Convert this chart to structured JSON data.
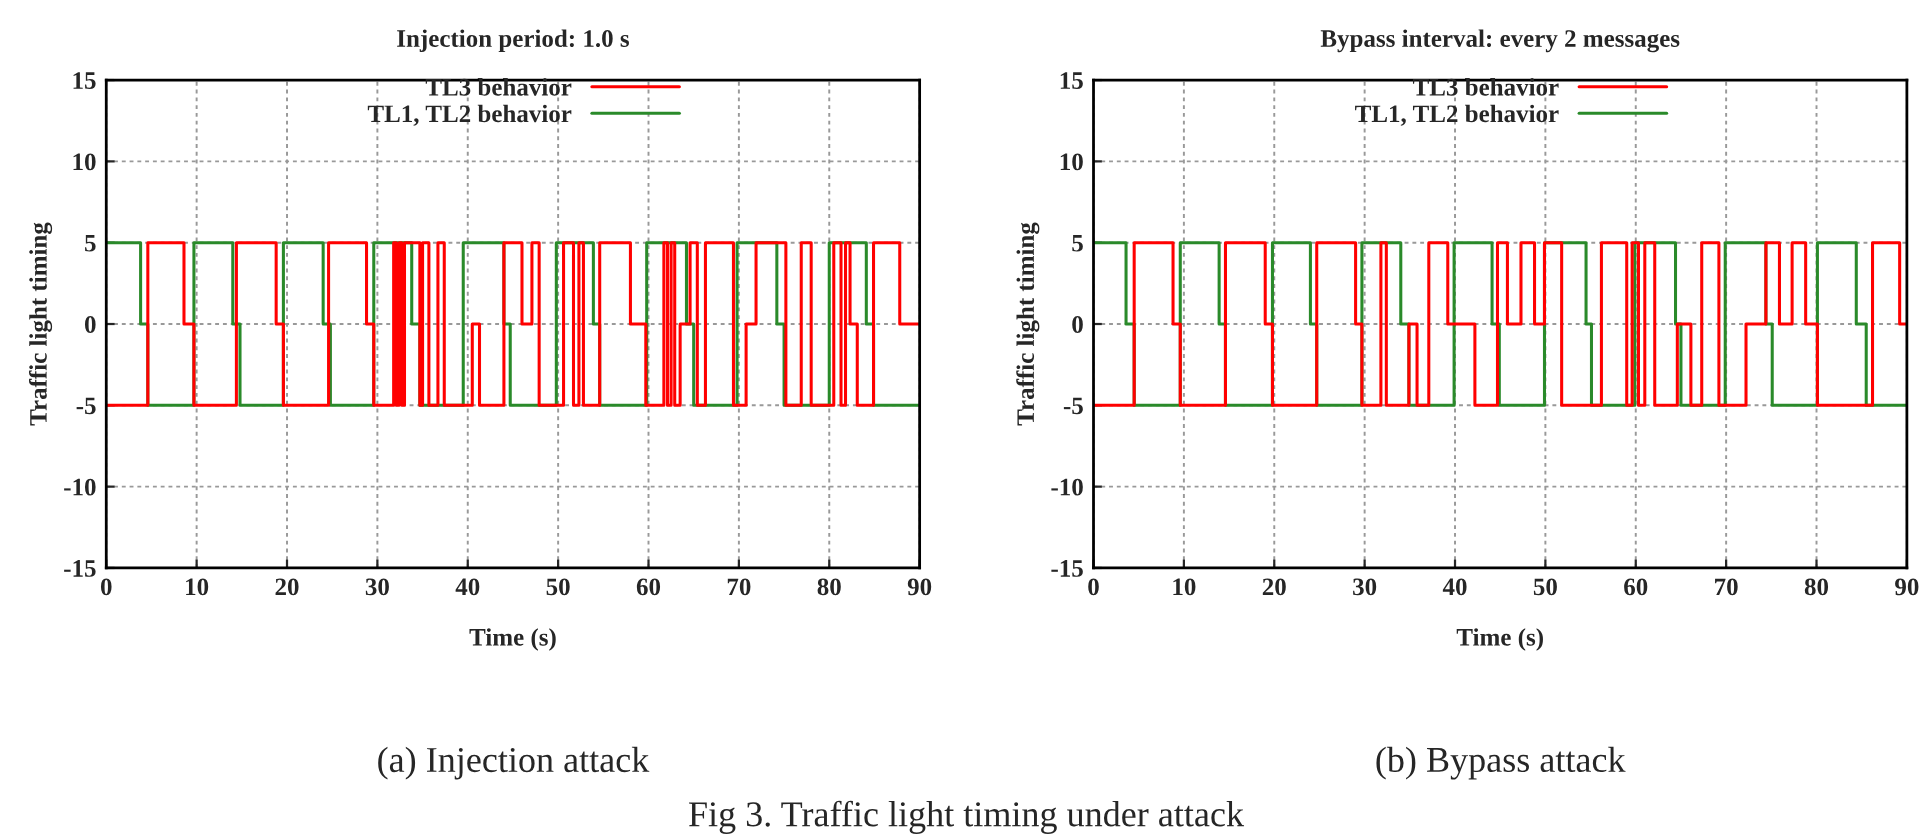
{
  "chart_data": [
    {
      "type": "step",
      "title": "Injection period: 1.0 s",
      "xlabel": "Time (s)",
      "ylabel": "Traffic light timing",
      "xlim": [
        0,
        90
      ],
      "xticks": [
        0,
        10,
        20,
        30,
        40,
        50,
        60,
        70,
        80,
        90
      ],
      "ylim": [
        -15,
        15
      ],
      "yticks": [
        -15,
        -10,
        -5,
        0,
        5,
        10,
        15
      ],
      "grid": true,
      "legend": "top right",
      "series": [
        {
          "name": "TL3 behavior",
          "color": "#ff0000",
          "x": [
            0,
            4.6,
            8.6,
            9.7,
            14.4,
            18.8,
            19.6,
            24.6,
            28.8,
            29.6,
            31.8,
            32.1,
            32.4,
            32.7,
            33.0,
            34.7,
            35,
            35.7,
            36.7,
            37.4,
            40.5,
            41.3,
            44,
            46,
            47.1,
            47.9,
            50.6,
            51.7,
            52.3,
            52.8,
            54.6,
            58,
            59.7,
            61.7,
            62.1,
            62.5,
            62.9,
            63.5,
            64.6,
            65.4,
            66.3,
            69.4,
            70.8,
            71.9,
            75.2,
            76.9,
            78,
            80.5,
            81.3,
            81.8,
            82.3,
            83.1,
            84.9,
            87.8,
            90
          ],
          "values": [
            -5,
            5,
            0,
            -5,
            5,
            0,
            -5,
            5,
            0,
            -5,
            5,
            -5,
            5,
            -5,
            5,
            -5,
            5,
            -5,
            5,
            -5,
            0,
            -5,
            5,
            0,
            5,
            -5,
            5,
            -5,
            5,
            -5,
            5,
            0,
            -5,
            5,
            -5,
            5,
            -5,
            0,
            5,
            -5,
            5,
            -5,
            0,
            5,
            -5,
            5,
            -5,
            5,
            -5,
            5,
            0,
            -5,
            5,
            0,
            0
          ]
        },
        {
          "name": "TL1, TL2 behavior",
          "color": "#2a8a2a",
          "x": [
            0,
            3.8,
            4.6,
            9.7,
            14,
            14.8,
            19.6,
            24,
            24.8,
            29.6,
            33.8,
            34.7,
            39.5,
            44,
            44.7,
            49.8,
            53.9,
            54.6,
            59.8,
            64.2,
            65,
            69.8,
            74.2,
            75,
            80,
            84.1,
            84.9,
            90
          ],
          "values": [
            5,
            0,
            -5,
            5,
            0,
            -5,
            5,
            0,
            -5,
            5,
            0,
            -5,
            5,
            0,
            -5,
            5,
            0,
            -5,
            5,
            0,
            -5,
            5,
            0,
            -5,
            5,
            0,
            -5,
            -5
          ]
        }
      ],
      "annotations": [
        "(a) Injection attack"
      ]
    },
    {
      "type": "step",
      "title": "Bypass interval: every 2 messages",
      "xlabel": "Time (s)",
      "ylabel": "Traffic light timing",
      "xlim": [
        0,
        90
      ],
      "xticks": [
        0,
        10,
        20,
        30,
        40,
        50,
        60,
        70,
        80,
        90
      ],
      "ylim": [
        -15,
        15
      ],
      "yticks": [
        -15,
        -10,
        -5,
        0,
        5,
        10,
        15
      ],
      "grid": true,
      "legend": "top right",
      "series": [
        {
          "name": "TL3 behavior",
          "color": "#ff0000",
          "x": [
            0,
            4.5,
            8.8,
            9.6,
            14.6,
            19,
            19.8,
            24.7,
            29,
            29.7,
            31.8,
            32.4,
            34.9,
            35.8,
            37.1,
            39.2,
            42.2,
            44.7,
            45.8,
            47.3,
            48.8,
            49.9,
            51.8,
            56.2,
            59,
            59.6,
            60.3,
            61,
            62.1,
            64.6,
            66.1,
            67.3,
            69.2,
            72.2,
            74.4,
            75.9,
            77.3,
            78.8,
            80.1,
            86.2,
            89.2,
            90
          ],
          "values": [
            -5,
            5,
            0,
            -5,
            5,
            0,
            -5,
            5,
            0,
            -5,
            5,
            -5,
            0,
            -5,
            5,
            0,
            -5,
            5,
            0,
            5,
            0,
            5,
            -5,
            5,
            -5,
            5,
            -5,
            5,
            -5,
            0,
            -5,
            5,
            -5,
            0,
            5,
            0,
            5,
            0,
            -5,
            5,
            0,
            0
          ]
        },
        {
          "name": "TL1, TL2 behavior",
          "color": "#2a8a2a",
          "x": [
            0,
            3.6,
            4.5,
            9.6,
            13.9,
            14.6,
            19.8,
            24,
            24.7,
            29.7,
            34,
            34.9,
            39.9,
            44.1,
            44.9,
            49.9,
            54.5,
            55.1,
            59.9,
            64.4,
            65,
            69.9,
            74.4,
            75.1,
            80.1,
            84.4,
            85.5,
            90
          ],
          "values": [
            5,
            0,
            -5,
            5,
            0,
            -5,
            5,
            0,
            -5,
            5,
            0,
            -5,
            5,
            0,
            -5,
            5,
            0,
            -5,
            5,
            0,
            -5,
            5,
            0,
            -5,
            5,
            0,
            -5,
            -5
          ]
        }
      ],
      "annotations": [
        "(b) Bypass attack",
        "Fig 3. Traffic light timing under attack"
      ]
    }
  ]
}
